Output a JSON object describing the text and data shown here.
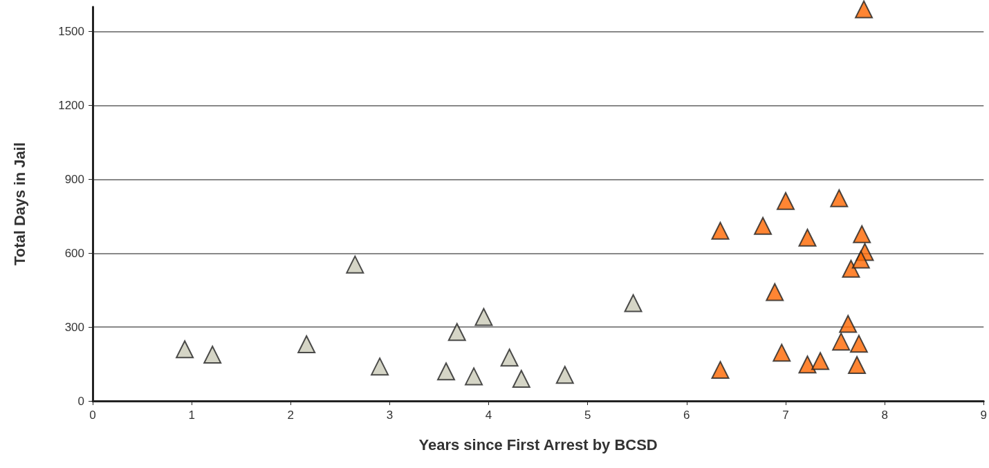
{
  "chart_data": {
    "type": "scatter",
    "xlabel": "Years since First Arrest by BCSD",
    "ylabel": "Total Days in Jail",
    "xlim": [
      0,
      9
    ],
    "xticks": [
      0,
      1,
      2,
      3,
      4,
      5,
      6,
      7,
      8,
      9
    ],
    "ylim": [
      0,
      1600
    ],
    "yticks": [
      0,
      300,
      600,
      900,
      1200,
      1500
    ],
    "grid": "y",
    "marker": "triangle",
    "series": [
      {
        "color": "#cbcbb8",
        "x": [
          0.93,
          1.21,
          2.16,
          2.65,
          2.9,
          3.57,
          3.68,
          3.85,
          3.95,
          4.21,
          4.33,
          4.77,
          5.46
        ],
        "values": [
          210,
          188,
          230,
          554,
          140,
          120,
          280,
          100,
          341,
          176,
          90,
          106,
          397
        ]
      },
      {
        "color": "#ff6600",
        "x": [
          6.34,
          6.34,
          6.77,
          7.0,
          6.89,
          6.96,
          7.22,
          7.22,
          7.35,
          7.54,
          7.56,
          7.63,
          7.66,
          7.8,
          7.76,
          7.77,
          7.74,
          7.72,
          7.79
        ],
        "values": [
          691,
          126,
          711,
          812,
          442,
          196,
          663,
          148,
          162,
          823,
          241,
          313,
          537,
          605,
          574,
          677,
          232,
          146,
          1590
        ]
      }
    ]
  }
}
